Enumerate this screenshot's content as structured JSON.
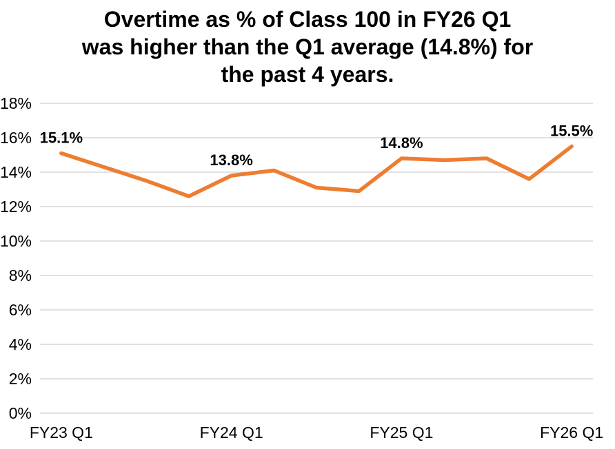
{
  "title": {
    "lines": [
      "Overtime as % of Class 100 in FY26 Q1",
      "was higher than the Q1 average (14.8%) for",
      "the past 4 years."
    ]
  },
  "chart_data": {
    "type": "line",
    "series": [
      {
        "name": "Overtime as % of Class 100",
        "values": [
          15.1,
          14.3,
          13.5,
          12.6,
          13.8,
          14.1,
          13.1,
          12.9,
          14.8,
          14.7,
          14.8,
          13.6,
          15.5
        ]
      }
    ],
    "num_points": 13,
    "x_tick_labels": [
      {
        "index": 0,
        "label": "FY23 Q1"
      },
      {
        "index": 4,
        "label": "FY24 Q1"
      },
      {
        "index": 8,
        "label": "FY25 Q1"
      },
      {
        "index": 12,
        "label": "FY26 Q1"
      }
    ],
    "data_point_labels": [
      {
        "index": 0,
        "text": "15.1%"
      },
      {
        "index": 4,
        "text": "13.8%"
      },
      {
        "index": 8,
        "text": "14.8%"
      },
      {
        "index": 12,
        "text": "15.5%"
      }
    ],
    "y_axis": {
      "min": 0,
      "max": 18,
      "step": 2,
      "tick_labels": [
        "0%",
        "2%",
        "4%",
        "6%",
        "8%",
        "10%",
        "12%",
        "14%",
        "16%",
        "18%"
      ]
    },
    "grid": "horizontal",
    "legend": "none",
    "colors": {
      "line": "#ED7D31",
      "gridline": "#D0CECE",
      "text": "#000000",
      "background": "#FFFFFF"
    }
  }
}
